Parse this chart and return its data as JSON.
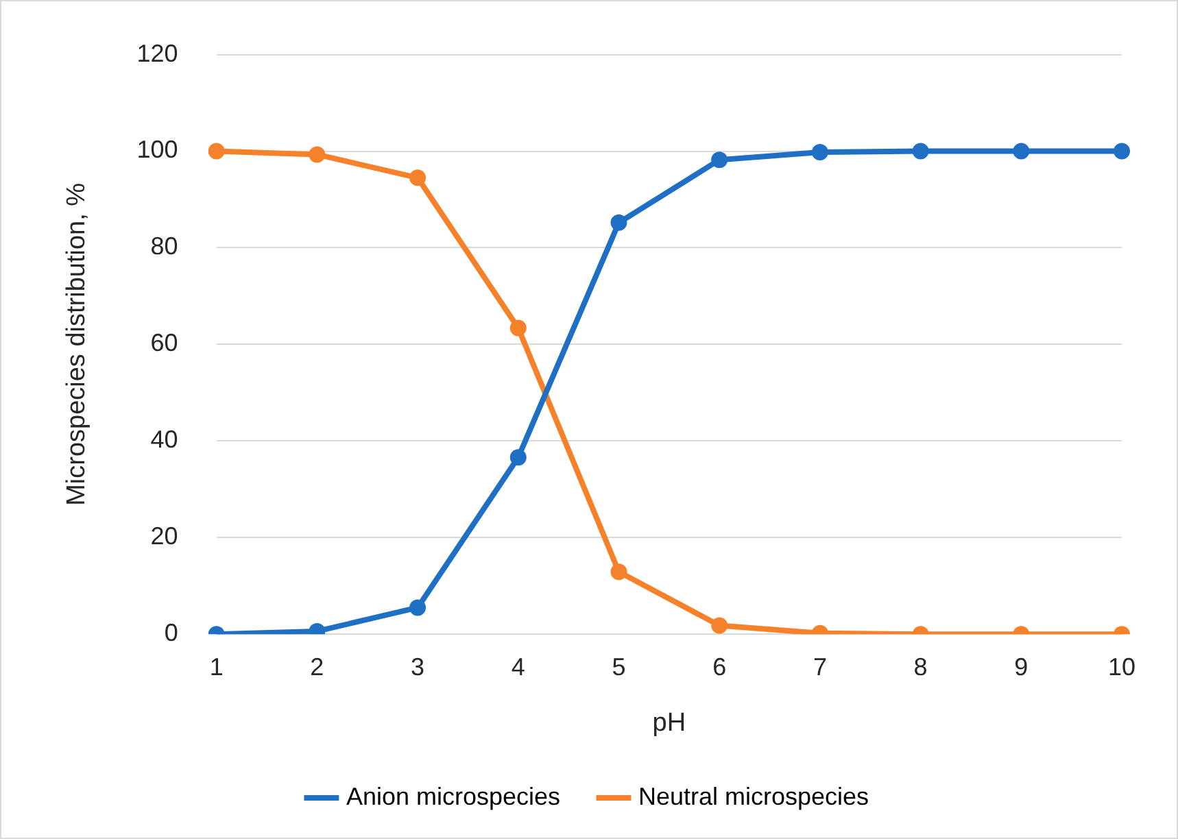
{
  "chart_data": {
    "type": "line",
    "xlabel": "pH",
    "ylabel": "Microspecies distribution, %",
    "categories": [
      "1",
      "2",
      "3",
      "4",
      "5",
      "6",
      "7",
      "8",
      "9",
      "10"
    ],
    "series": [
      {
        "name": "Anion microspecies",
        "color": "#1f6fc5",
        "values": [
          0,
          0.6,
          5.5,
          36.6,
          85.2,
          98.2,
          99.8,
          100,
          100,
          100
        ]
      },
      {
        "name": "Neutral microspecies",
        "color": "#f5822a",
        "values": [
          100,
          99.3,
          94.5,
          63.4,
          12.9,
          1.8,
          0.2,
          0,
          0,
          0
        ]
      }
    ],
    "ylim": [
      0,
      120
    ],
    "yticks": [
      0,
      20,
      40,
      60,
      80,
      100,
      120
    ],
    "grid": "y",
    "legend": "bottom",
    "marker": "circle",
    "line_style": "solid"
  }
}
